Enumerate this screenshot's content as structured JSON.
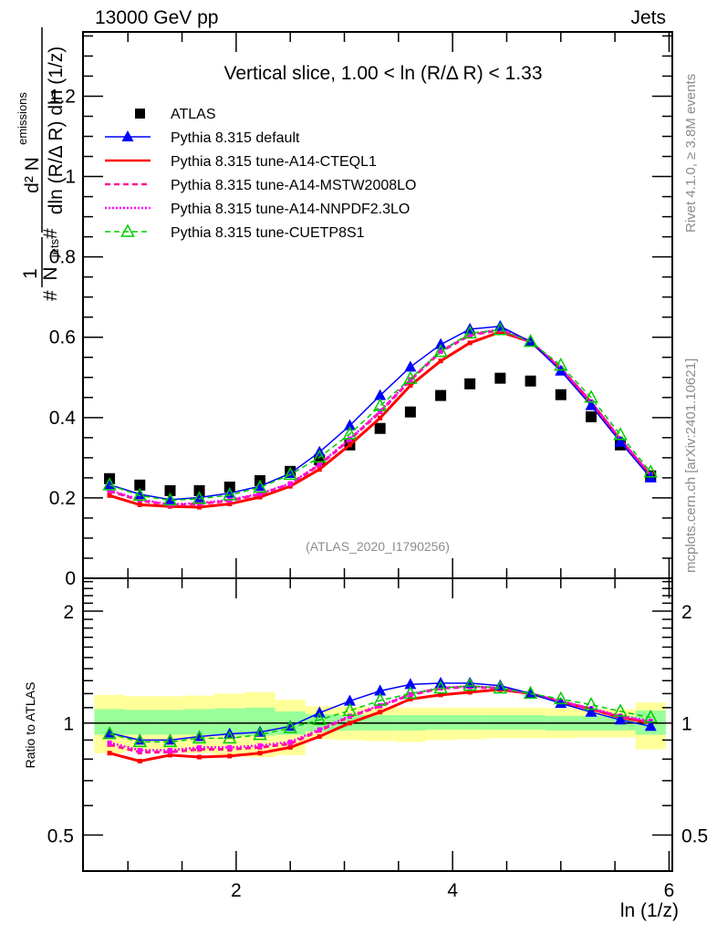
{
  "header": {
    "left": "13000 GeV pp",
    "right": "Jets"
  },
  "side_labels": {
    "rivet": "Rivet 4.1.0, ≥ 3.8M events",
    "mcplots": "mcplots.cern.ch [arXiv:2401.10621]"
  },
  "analysis_id": "(ATLAS_2020_I1790256)",
  "colors": {
    "atlas": "#000000",
    "default": "#0000ff",
    "cteql1": "#ff0000",
    "mstw": "#ff1493",
    "nnpdf": "#ff00ff",
    "cuetp8s1": "#00cc00",
    "band_inner": "#99ff99",
    "band_outer": "#ffff99"
  },
  "chart_data": [
    {
      "type": "scatter",
      "panel": "main",
      "title": "Vertical slice, 1.00 < ln (R/Δ R) < 1.33",
      "xlabel": "ln (1/z)",
      "ylabel": "1/N_jets d²N_emissions / dln (R/Δ R) dln (1/z)",
      "ylabel_parts": {
        "numerator": "d² N",
        "numerator_sub": "emissions",
        "denominator": "dln (R/Δ R) dln (1/z)",
        "prefix_num": "1",
        "prefix_den": "N",
        "prefix_den_sub": "jets"
      },
      "xlim": [
        0.585,
        6.03
      ],
      "ylim": [
        0,
        1.36
      ],
      "yticks": [
        0,
        0.2,
        0.4,
        0.6,
        0.8,
        1,
        1.2
      ],
      "ytick_labels": [
        "0",
        "0.2",
        "0.4",
        "0.6",
        "0.8",
        "1",
        "1.2"
      ],
      "xticks": [
        2,
        4,
        6
      ],
      "legend_position": "top-left",
      "x": [
        0.83,
        1.11,
        1.39,
        1.66,
        1.94,
        2.22,
        2.5,
        2.77,
        3.05,
        3.33,
        3.61,
        3.89,
        4.16,
        4.44,
        4.72,
        5.0,
        5.28,
        5.55,
        5.83
      ],
      "series": [
        {
          "key": "atlas",
          "name": "ATLAS",
          "style": "square",
          "values": [
            0.248,
            0.232,
            0.218,
            0.218,
            0.227,
            0.243,
            0.266,
            0.295,
            0.332,
            0.373,
            0.414,
            0.455,
            0.484,
            0.498,
            0.491,
            0.457,
            0.402,
            0.332,
            0.255
          ]
        },
        {
          "key": "default",
          "name": "Pythia 8.315 default",
          "style": "solid-triangle",
          "values": [
            0.233,
            0.209,
            0.196,
            0.201,
            0.212,
            0.229,
            0.261,
            0.314,
            0.38,
            0.455,
            0.526,
            0.582,
            0.62,
            0.627,
            0.589,
            0.516,
            0.43,
            0.339,
            0.25
          ]
        },
        {
          "key": "cteql1",
          "name": "Pythia 8.315 tune-A14-CTEQL1",
          "style": "solid-thick",
          "values": [
            0.206,
            0.183,
            0.179,
            0.177,
            0.185,
            0.202,
            0.229,
            0.271,
            0.332,
            0.399,
            0.48,
            0.541,
            0.586,
            0.613,
            0.589,
            0.521,
            0.438,
            0.344,
            0.255
          ]
        },
        {
          "key": "mstw",
          "name": "Pythia 8.315 tune-A14-MSTW2008LO",
          "style": "dashed",
          "values": [
            0.217,
            0.194,
            0.182,
            0.185,
            0.193,
            0.209,
            0.234,
            0.282,
            0.345,
            0.414,
            0.493,
            0.564,
            0.605,
            0.618,
            0.589,
            0.521,
            0.438,
            0.345,
            0.256
          ]
        },
        {
          "key": "nnpdf",
          "name": "Pythia 8.315 tune-A14-NNPDF2.3LO",
          "style": "dotted",
          "values": [
            0.219,
            0.196,
            0.184,
            0.187,
            0.195,
            0.211,
            0.236,
            0.284,
            0.347,
            0.416,
            0.495,
            0.566,
            0.607,
            0.62,
            0.59,
            0.523,
            0.44,
            0.347,
            0.258
          ]
        },
        {
          "key": "cuetp8s1",
          "name": "Pythia 8.315 tune-CUETP8S1",
          "style": "dashed-open-triangle",
          "values": [
            0.232,
            0.206,
            0.194,
            0.198,
            0.207,
            0.226,
            0.258,
            0.301,
            0.359,
            0.429,
            0.497,
            0.564,
            0.61,
            0.618,
            0.589,
            0.53,
            0.45,
            0.357,
            0.264
          ]
        }
      ]
    },
    {
      "type": "line",
      "panel": "ratio",
      "ylabel": "Ratio to ATLAS",
      "xlabel": "ln (1/z)",
      "yscale": "log",
      "ylim": [
        0.4,
        2.45
      ],
      "yticks": [
        0.5,
        1,
        2
      ],
      "ytick_labels": [
        "0.5",
        "1",
        "2"
      ],
      "xticks": [
        2,
        4,
        6
      ],
      "xtick_labels": [
        "2",
        "4",
        "6"
      ],
      "x": [
        0.83,
        1.11,
        1.39,
        1.66,
        1.94,
        2.22,
        2.5,
        2.77,
        3.05,
        3.33,
        3.61,
        3.89,
        4.16,
        4.44,
        4.72,
        5.0,
        5.28,
        5.55,
        5.83
      ],
      "bin_edges": [
        0.69,
        0.97,
        1.25,
        1.52,
        1.8,
        2.08,
        2.36,
        2.64,
        2.91,
        3.19,
        3.47,
        3.75,
        4.02,
        4.3,
        4.58,
        4.86,
        5.14,
        5.41,
        5.69,
        5.97
      ],
      "band_inner": {
        "low": [
          0.93,
          0.93,
          0.93,
          0.93,
          0.925,
          0.925,
          0.93,
          0.95,
          0.955,
          0.955,
          0.955,
          0.96,
          0.96,
          0.96,
          0.96,
          0.955,
          0.955,
          0.955,
          0.93
        ],
        "high": [
          1.09,
          1.085,
          1.085,
          1.09,
          1.095,
          1.1,
          1.075,
          1.055,
          1.05,
          1.05,
          1.05,
          1.05,
          1.05,
          1.05,
          1.05,
          1.045,
          1.045,
          1.045,
          1.08
        ]
      },
      "band_outer": {
        "low": [
          0.83,
          0.84,
          0.84,
          0.83,
          0.82,
          0.81,
          0.82,
          0.905,
          0.9,
          0.895,
          0.89,
          0.9,
          0.905,
          0.91,
          0.91,
          0.91,
          0.915,
          0.915,
          0.85
        ],
        "high": [
          1.19,
          1.18,
          1.18,
          1.185,
          1.2,
          1.21,
          1.155,
          1.11,
          1.105,
          1.105,
          1.1,
          1.1,
          1.1,
          1.1,
          1.1,
          1.095,
          1.09,
          1.09,
          1.135
        ]
      },
      "series": [
        {
          "key": "default",
          "name": "Pythia 8.315 default",
          "values": [
            0.94,
            0.9,
            0.9,
            0.92,
            0.935,
            0.945,
            0.98,
            1.065,
            1.146,
            1.22,
            1.27,
            1.28,
            1.28,
            1.26,
            1.2,
            1.13,
            1.07,
            1.02,
            0.98
          ]
        },
        {
          "key": "cteql1",
          "name": "Pythia 8.315 tune-A14-CTEQL1",
          "values": [
            0.83,
            0.79,
            0.82,
            0.81,
            0.815,
            0.83,
            0.86,
            0.92,
            1.0,
            1.07,
            1.16,
            1.19,
            1.21,
            1.23,
            1.2,
            1.14,
            1.09,
            1.035,
            1.0
          ]
        },
        {
          "key": "mstw",
          "name": "Pythia 8.315 tune-A14-MSTW2008LO",
          "values": [
            0.875,
            0.835,
            0.835,
            0.85,
            0.85,
            0.86,
            0.88,
            0.955,
            1.04,
            1.11,
            1.19,
            1.24,
            1.25,
            1.24,
            1.2,
            1.14,
            1.09,
            1.04,
            1.005
          ]
        },
        {
          "key": "nnpdf",
          "name": "Pythia 8.315 tune-A14-NNPDF2.3LO",
          "values": [
            0.885,
            0.845,
            0.845,
            0.86,
            0.86,
            0.87,
            0.89,
            0.96,
            1.045,
            1.115,
            1.195,
            1.245,
            1.255,
            1.245,
            1.2,
            1.145,
            1.095,
            1.045,
            1.012
          ]
        },
        {
          "key": "cuetp8s1",
          "name": "Pythia 8.315 tune-CUETP8S1",
          "values": [
            0.935,
            0.89,
            0.89,
            0.91,
            0.91,
            0.93,
            0.97,
            1.02,
            1.08,
            1.15,
            1.2,
            1.24,
            1.26,
            1.24,
            1.2,
            1.16,
            1.12,
            1.075,
            1.035
          ]
        }
      ]
    }
  ]
}
